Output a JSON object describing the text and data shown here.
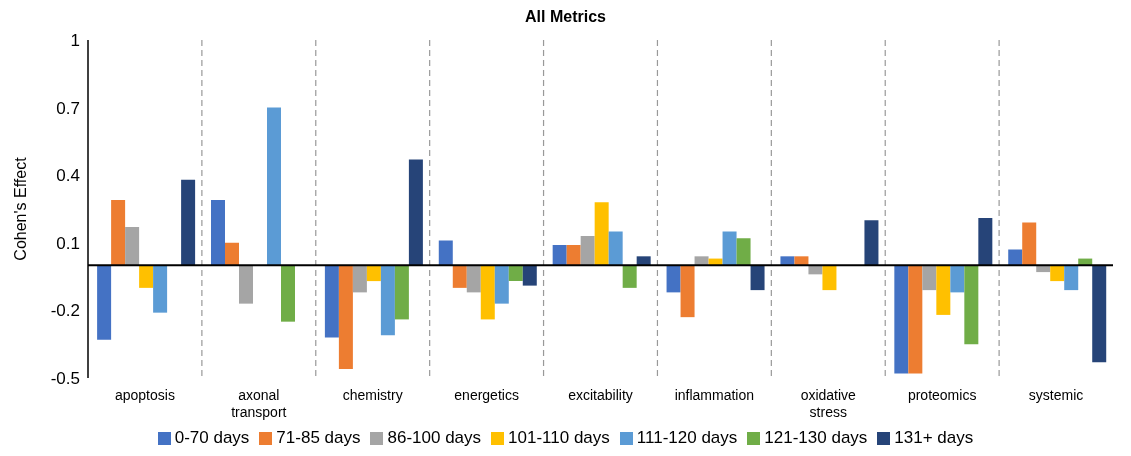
{
  "chart_data": {
    "type": "bar",
    "title": "All Metrics",
    "ylabel": "Cohen's Effect",
    "categories": [
      "apoptosis",
      "axonal transport",
      "chemistry",
      "energetics",
      "excitability",
      "inflammation",
      "oxidative stress",
      "proteomics",
      "systemic"
    ],
    "series": [
      {
        "name": "0-70 days",
        "color": "#4472c4",
        "values": [
          -0.33,
          0.29,
          -0.32,
          0.11,
          0.09,
          -0.12,
          0.04,
          -0.48,
          0.07
        ]
      },
      {
        "name": "71-85 days",
        "color": "#ed7d31",
        "values": [
          0.29,
          0.1,
          -0.46,
          -0.1,
          0.09,
          -0.23,
          0.04,
          -0.48,
          0.19
        ]
      },
      {
        "name": "86-100 days",
        "color": "#a5a5a5",
        "values": [
          0.17,
          -0.17,
          -0.12,
          -0.12,
          0.13,
          0.04,
          -0.04,
          -0.11,
          -0.03
        ]
      },
      {
        "name": "101-110 days",
        "color": "#ffc000",
        "values": [
          -0.1,
          null,
          -0.07,
          -0.24,
          0.28,
          0.03,
          -0.11,
          -0.22,
          -0.07
        ]
      },
      {
        "name": "111-120 days",
        "color": "#5b9bd5",
        "values": [
          -0.21,
          0.7,
          -0.31,
          -0.17,
          0.15,
          0.15,
          null,
          -0.12,
          -0.11
        ]
      },
      {
        "name": "121-130 days",
        "color": "#70ad47",
        "values": [
          null,
          -0.25,
          -0.24,
          -0.07,
          -0.1,
          0.12,
          null,
          -0.35,
          0.03
        ]
      },
      {
        "name": "131+ days",
        "color": "#264478",
        "values": [
          0.38,
          null,
          0.47,
          -0.09,
          0.04,
          -0.11,
          0.2,
          0.21,
          -0.43
        ]
      }
    ],
    "ylim": [
      -0.5,
      1
    ],
    "yticks": [
      -0.5,
      -0.2,
      0.1,
      0.4,
      0.7,
      1
    ],
    "ref_lines": [
      {
        "axis": "y",
        "value": 0,
        "color": "#000000"
      }
    ],
    "grid": false,
    "legend": "bottom"
  }
}
